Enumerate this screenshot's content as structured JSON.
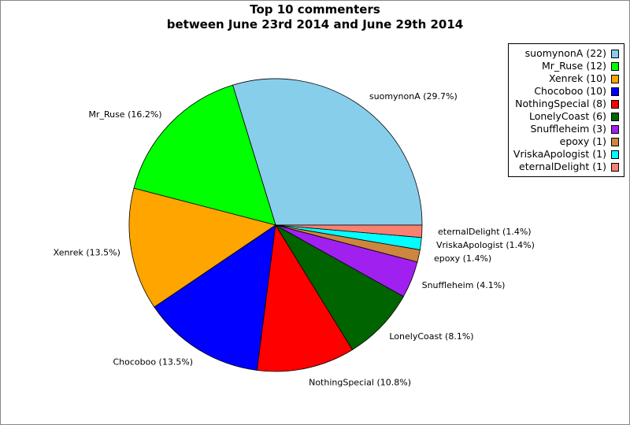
{
  "chart_data": {
    "type": "pie",
    "title": "Top 10 commenters",
    "subtitle": "between June 23rd 2014 and June 29th 2014",
    "legend_position": "top-right",
    "slices": [
      {
        "name": "suomynonA",
        "value": 22,
        "legend": "suomynonA (22)",
        "label": "suomynonA (29.7%)",
        "color": "#87ceeb"
      },
      {
        "name": "Mr_Ruse",
        "value": 12,
        "legend": "Mr_Ruse (12)",
        "label": "Mr_Ruse (16.2%)",
        "color": "#00ff00"
      },
      {
        "name": "Xenrek",
        "value": 10,
        "legend": "Xenrek (10)",
        "label": "Xenrek (13.5%)",
        "color": "#ffa500"
      },
      {
        "name": "Chocoboo",
        "value": 10,
        "legend": "Chocoboo (10)",
        "label": "Chocoboo (13.5%)",
        "color": "#0000ff"
      },
      {
        "name": "NothingSpecial",
        "value": 8,
        "legend": "NothingSpecial (8)",
        "label": "NothingSpecial (10.8%)",
        "color": "#ff0000"
      },
      {
        "name": "LonelyCoast",
        "value": 6,
        "legend": "LonelyCoast (6)",
        "label": "LonelyCoast (8.1%)",
        "color": "#006400"
      },
      {
        "name": "Snuffleheim",
        "value": 3,
        "legend": "Snuffleheim (3)",
        "label": "Snuffleheim (4.1%)",
        "color": "#a020f0"
      },
      {
        "name": "epoxy",
        "value": 1,
        "legend": "epoxy (1)",
        "label": "epoxy (1.4%)",
        "color": "#cd853f"
      },
      {
        "name": "VriskaApologist",
        "value": 1,
        "legend": "VriskaApologist (1)",
        "label": "VriskaApologist (1.4%)",
        "color": "#00ffff"
      },
      {
        "name": "eternalDelight",
        "value": 1,
        "legend": "eternalDelight (1)",
        "label": "eternalDelight (1.4%)",
        "color": "#fa8072"
      }
    ]
  }
}
